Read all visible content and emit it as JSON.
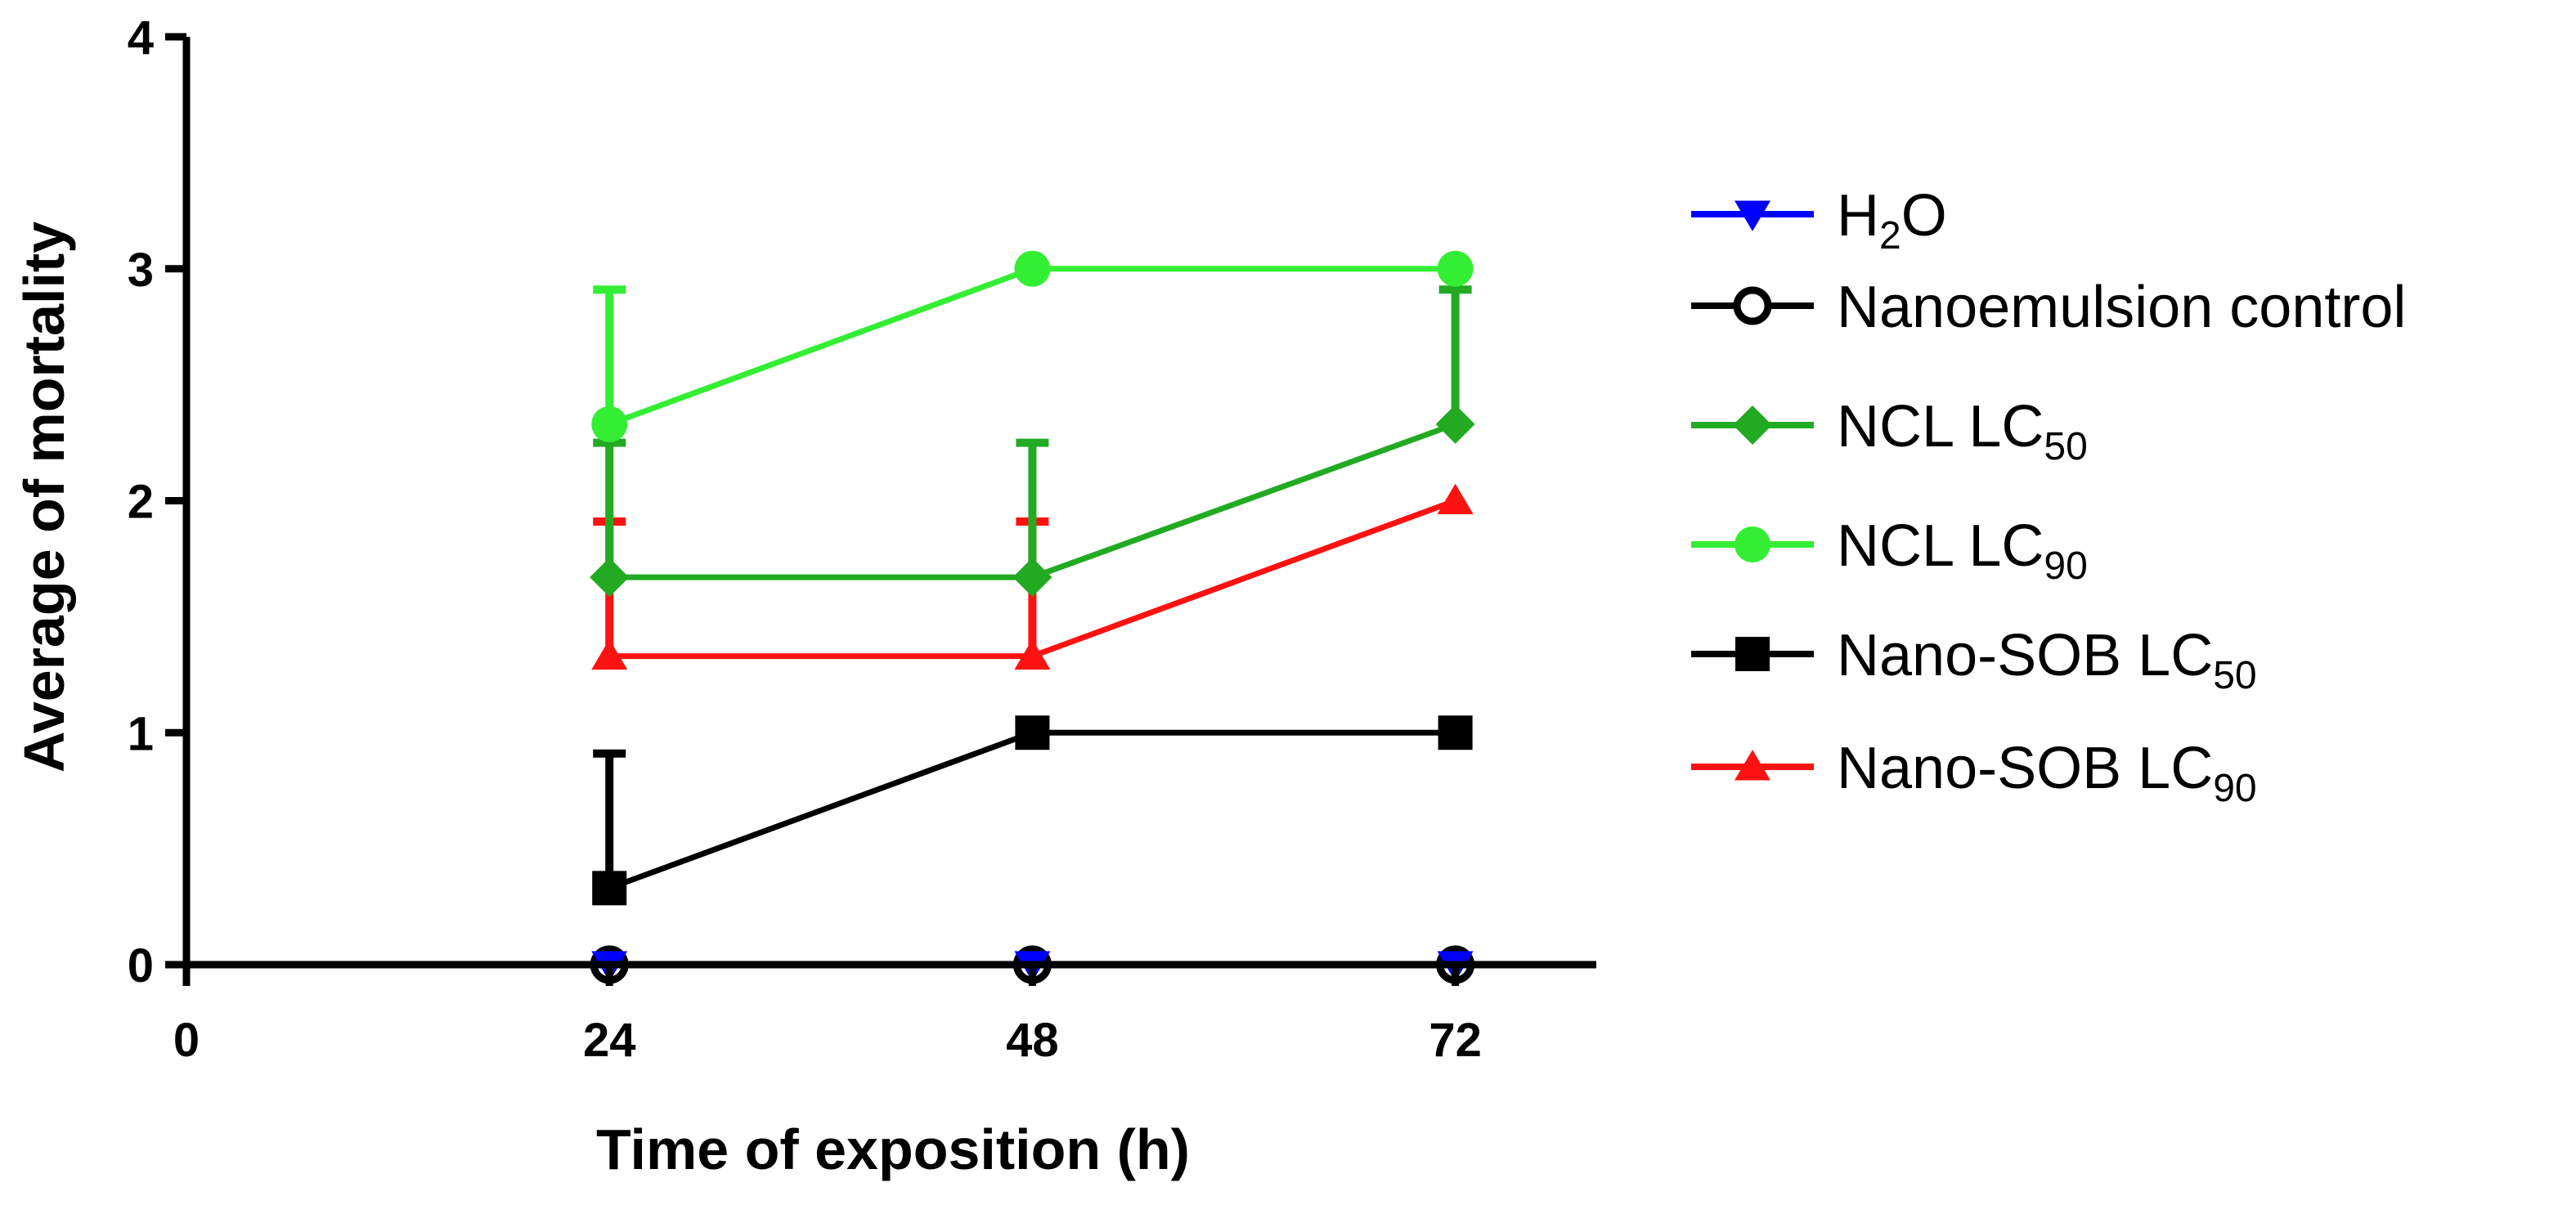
{
  "chart_data": {
    "type": "line",
    "xlabel": "Time of exposition (h)",
    "ylabel": "Average of mortality",
    "x_ticks": [
      "0",
      "24",
      "48",
      "72"
    ],
    "y_ticks": [
      "0",
      "1",
      "2",
      "3",
      "4"
    ],
    "xlim": [
      0,
      80
    ],
    "ylim": [
      0,
      4
    ],
    "grid": false,
    "legend_position": "right",
    "x": [
      24,
      48,
      72
    ],
    "series": [
      {
        "key": "h2o",
        "name": "H2O",
        "legend": {
          "main": "H",
          "sub": "2",
          "after": "O"
        },
        "color": "#0000ff",
        "marker": "triangle-down",
        "values": [
          0,
          0,
          0
        ],
        "errors": [
          0,
          0,
          0
        ]
      },
      {
        "key": "nano-control",
        "name": "Nanoemulsion control",
        "legend": {
          "main": "Nanoemulsion control",
          "sub": "",
          "after": ""
        },
        "color": "#000000",
        "marker": "circle-open",
        "values": [
          0,
          0,
          0
        ],
        "errors": [
          0,
          0,
          0
        ]
      },
      {
        "key": "ncl-lc50",
        "name": "NCL LC50",
        "legend": {
          "main": "NCL LC",
          "sub": "50",
          "after": ""
        },
        "color": "#22aa22",
        "marker": "diamond",
        "values": [
          1.67,
          1.67,
          2.33
        ],
        "errors": [
          0.58,
          0.58,
          0.58
        ]
      },
      {
        "key": "ncl-lc90",
        "name": "NCL LC90",
        "legend": {
          "main": "NCL LC",
          "sub": "90",
          "after": ""
        },
        "color": "#33ee33",
        "marker": "circle",
        "values": [
          2.33,
          3.0,
          3.0
        ],
        "errors": [
          0.58,
          0,
          0
        ]
      },
      {
        "key": "nano-sob-lc50",
        "name": "Nano-SOB LC50",
        "legend": {
          "main": "Nano-SOB LC",
          "sub": "50",
          "after": ""
        },
        "color": "#000000",
        "marker": "square",
        "values": [
          0.33,
          1.0,
          1.0
        ],
        "errors": [
          0.58,
          0,
          0
        ]
      },
      {
        "key": "nano-sob-lc90",
        "name": "Nano-SOB LC90",
        "legend": {
          "main": "Nano-SOB LC",
          "sub": "90",
          "after": ""
        },
        "color": "#ff1111",
        "marker": "triangle-up",
        "values": [
          1.33,
          1.33,
          2.0
        ],
        "errors": [
          0.58,
          0.58,
          0
        ]
      }
    ]
  }
}
